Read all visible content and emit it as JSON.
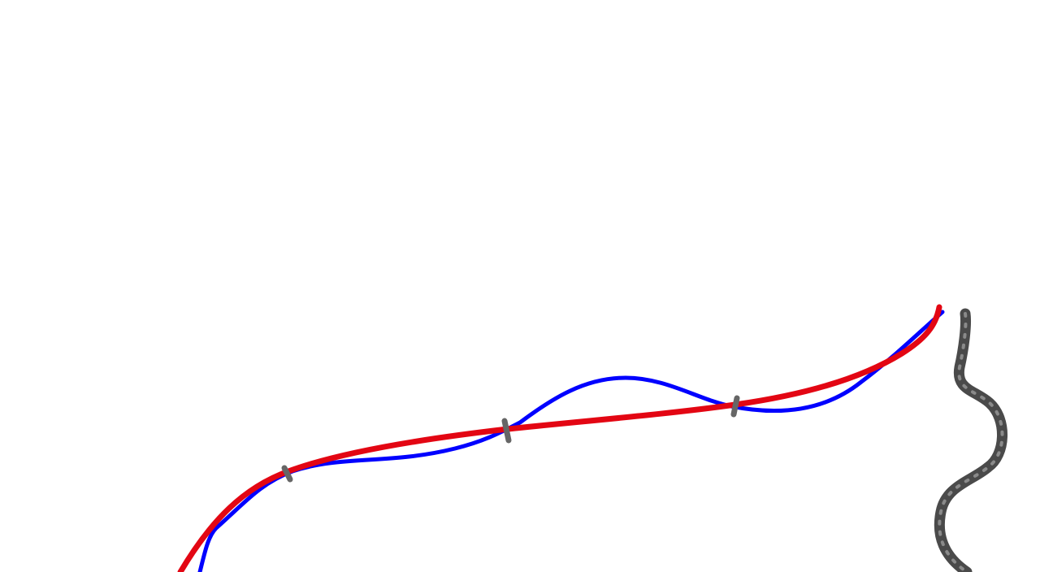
{
  "colors": {
    "background": "#ffffff",
    "blue_stroke": "#0000ff",
    "red_stroke": "#e30613",
    "tick_marks": "#666666",
    "dark_squiggle": "#4a4a4a"
  },
  "strokes": [
    {
      "name": "blue-curve",
      "color_key": "blue_stroke"
    },
    {
      "name": "red-curve",
      "color_key": "red_stroke"
    },
    {
      "name": "dark-squiggle",
      "color_key": "dark_squiggle"
    }
  ],
  "tick_mark_count": 3
}
